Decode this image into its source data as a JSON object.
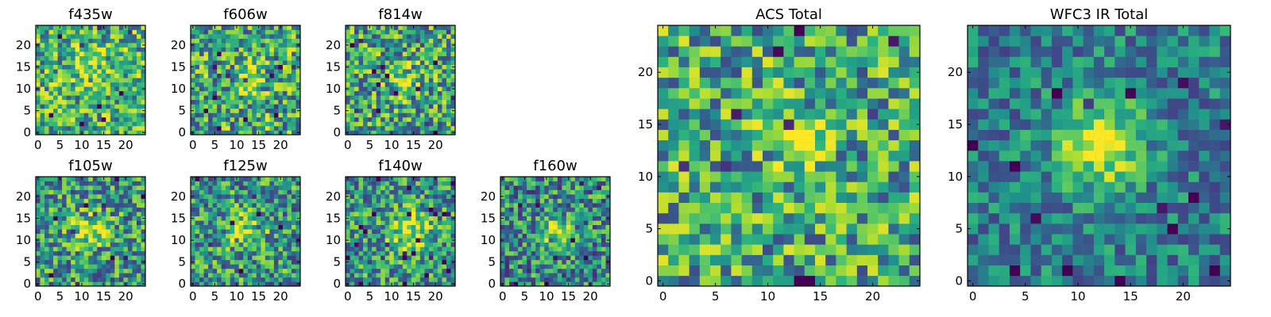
{
  "chart_data": [
    {
      "type": "heatmap",
      "title": "f435w",
      "grid_size": 25,
      "xticks": [
        0,
        5,
        10,
        15,
        20
      ],
      "yticks": [
        0,
        5,
        10,
        15,
        20
      ],
      "xlim": [
        -0.5,
        24.5
      ],
      "ylim": [
        -0.5,
        24.5
      ],
      "colormap": "viridis",
      "seed": 11,
      "peak": {
        "x": 12,
        "y": 15,
        "strength": 0.15,
        "sigma": 3.0
      },
      "noise": 0.33,
      "base": 0.66
    },
    {
      "type": "heatmap",
      "title": "f606w",
      "grid_size": 25,
      "xticks": [
        0,
        5,
        10,
        15,
        20
      ],
      "yticks": [
        0,
        5,
        10,
        15,
        20
      ],
      "xlim": [
        -0.5,
        24.5
      ],
      "ylim": [
        -0.5,
        24.5
      ],
      "colormap": "viridis",
      "seed": 23,
      "peak": {
        "x": 13,
        "y": 12,
        "strength": 0.2,
        "sigma": 2.5
      },
      "noise": 0.36,
      "base": 0.62
    },
    {
      "type": "heatmap",
      "title": "f814w",
      "grid_size": 25,
      "xticks": [
        0,
        5,
        10,
        15,
        20
      ],
      "yticks": [
        0,
        5,
        10,
        15,
        20
      ],
      "xlim": [
        -0.5,
        24.5
      ],
      "ylim": [
        -0.5,
        24.5
      ],
      "colormap": "viridis",
      "seed": 37,
      "peak": {
        "x": 13,
        "y": 12,
        "strength": 0.25,
        "sigma": 2.5
      },
      "noise": 0.36,
      "base": 0.6
    },
    {
      "type": "heatmap",
      "title": "f105w",
      "grid_size": 25,
      "xticks": [
        0,
        5,
        10,
        15,
        20
      ],
      "yticks": [
        0,
        5,
        10,
        15,
        20
      ],
      "xlim": [
        -0.5,
        24.5
      ],
      "ylim": [
        -0.5,
        24.5
      ],
      "colormap": "viridis",
      "seed": 41,
      "peak": {
        "x": 12,
        "y": 12,
        "strength": 0.35,
        "sigma": 3.0
      },
      "noise": 0.34,
      "base": 0.55
    },
    {
      "type": "heatmap",
      "title": "f125w",
      "grid_size": 25,
      "xticks": [
        0,
        5,
        10,
        15,
        20
      ],
      "yticks": [
        0,
        5,
        10,
        15,
        20
      ],
      "xlim": [
        -0.5,
        24.5
      ],
      "ylim": [
        -0.5,
        24.5
      ],
      "colormap": "viridis",
      "seed": 53,
      "peak": {
        "x": 12,
        "y": 12,
        "strength": 0.3,
        "sigma": 3.0
      },
      "noise": 0.34,
      "base": 0.55
    },
    {
      "type": "heatmap",
      "title": "f140w",
      "grid_size": 25,
      "xticks": [
        0,
        5,
        10,
        15,
        20
      ],
      "yticks": [
        0,
        5,
        10,
        15,
        20
      ],
      "xlim": [
        -0.5,
        24.5
      ],
      "ylim": [
        -0.5,
        24.5
      ],
      "colormap": "viridis",
      "seed": 67,
      "peak": {
        "x": 14,
        "y": 12,
        "strength": 0.35,
        "sigma": 3.5
      },
      "noise": 0.32,
      "base": 0.55
    },
    {
      "type": "heatmap",
      "title": "f160w",
      "grid_size": 25,
      "xticks": [
        0,
        5,
        10,
        15,
        20
      ],
      "yticks": [
        0,
        5,
        10,
        15,
        20
      ],
      "xlim": [
        -0.5,
        24.5
      ],
      "ylim": [
        -0.5,
        24.5
      ],
      "colormap": "viridis",
      "seed": 79,
      "peak": {
        "x": 12,
        "y": 12,
        "strength": 0.4,
        "sigma": 2.5
      },
      "noise": 0.34,
      "base": 0.5
    },
    {
      "type": "heatmap",
      "title": "ACS Total",
      "grid_size": 25,
      "xticks": [
        0,
        5,
        10,
        15,
        20
      ],
      "yticks": [
        0,
        5,
        10,
        15,
        20
      ],
      "xlim": [
        -0.5,
        24.5
      ],
      "ylim": [
        -0.5,
        24.5
      ],
      "colormap": "viridis",
      "seed": 97,
      "peak": {
        "x": 13,
        "y": 13,
        "strength": 0.3,
        "sigma": 2.0
      },
      "noise": 0.34,
      "base": 0.62
    },
    {
      "type": "heatmap",
      "title": "WFC3 IR Total",
      "grid_size": 25,
      "xticks": [
        0,
        5,
        10,
        15,
        20
      ],
      "yticks": [
        0,
        5,
        10,
        15,
        20
      ],
      "xlim": [
        -0.5,
        24.5
      ],
      "ylim": [
        -0.5,
        24.5
      ],
      "colormap": "viridis",
      "seed": 131,
      "peak": {
        "x": 12,
        "y": 13,
        "strength": 0.5,
        "sigma": 3.0
      },
      "noise": 0.22,
      "base": 0.45
    }
  ],
  "colors": {
    "viridis_low": "#440154",
    "viridis_mid": "#21918c",
    "viridis_high": "#fde725",
    "frame": "#000000",
    "background": "#ffffff"
  }
}
